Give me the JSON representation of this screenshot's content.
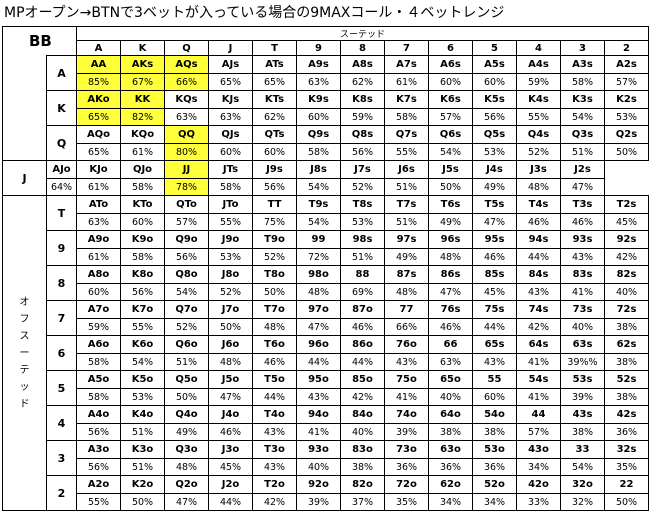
{
  "title": "MPオープン→BTNで3ベットが入っている場合の9MAXコール・４ベットレンジ",
  "corner_label": "BB",
  "suited_label": "スーテッド",
  "offsuit_label": [
    "オ",
    "フ",
    "ス",
    "ー",
    "テ",
    "ッ",
    "ド"
  ],
  "columns": [
    "A",
    "K",
    "Q",
    "J",
    "T",
    "9",
    "8",
    "7",
    "6",
    "5",
    "4",
    "3",
    "2"
  ],
  "rows": [
    {
      "rank": "A",
      "hands": [
        "AA",
        "AKs",
        "AQs",
        "AJs",
        "ATs",
        "A9s",
        "A8s",
        "A7s",
        "A6s",
        "A5s",
        "A4s",
        "A3s",
        "A2s"
      ],
      "pcts": [
        "85%",
        "67%",
        "66%",
        "65%",
        "65%",
        "63%",
        "62%",
        "61%",
        "60%",
        "60%",
        "59%",
        "58%",
        "57%"
      ],
      "highlight": [
        true,
        true,
        true,
        false,
        false,
        false,
        false,
        false,
        false,
        false,
        false,
        false,
        false
      ]
    },
    {
      "rank": "K",
      "hands": [
        "AKo",
        "KK",
        "KQs",
        "KJs",
        "KTs",
        "K9s",
        "K8s",
        "K7s",
        "K6s",
        "K5s",
        "K4s",
        "K3s",
        "K2s"
      ],
      "pcts": [
        "65%",
        "82%",
        "63%",
        "63%",
        "62%",
        "60%",
        "59%",
        "58%",
        "57%",
        "56%",
        "55%",
        "54%",
        "53%"
      ],
      "highlight": [
        true,
        true,
        false,
        false,
        false,
        false,
        false,
        false,
        false,
        false,
        false,
        false,
        false
      ]
    },
    {
      "rank": "Q",
      "hands": [
        "AQo",
        "KQo",
        "QQ",
        "QJs",
        "QTs",
        "Q9s",
        "Q8s",
        "Q7s",
        "Q6s",
        "Q5s",
        "Q4s",
        "Q3s",
        "Q2s"
      ],
      "pcts": [
        "65%",
        "61%",
        "80%",
        "60%",
        "60%",
        "58%",
        "56%",
        "55%",
        "54%",
        "53%",
        "52%",
        "51%",
        "50%"
      ],
      "highlight": [
        false,
        false,
        true,
        false,
        false,
        false,
        false,
        false,
        false,
        false,
        false,
        false,
        false
      ]
    },
    {
      "rank": "J",
      "hands": [
        "AJo",
        "KJo",
        "QJo",
        "JJ",
        "JTs",
        "J9s",
        "J8s",
        "J7s",
        "J6s",
        "J5s",
        "J4s",
        "J3s",
        "J2s"
      ],
      "pcts": [
        "64%",
        "61%",
        "58%",
        "78%",
        "58%",
        "56%",
        "54%",
        "52%",
        "51%",
        "50%",
        "49%",
        "48%",
        "47%"
      ],
      "highlight": [
        false,
        false,
        false,
        true,
        false,
        false,
        false,
        false,
        false,
        false,
        false,
        false,
        false
      ]
    },
    {
      "rank": "T",
      "hands": [
        "ATo",
        "KTo",
        "QTo",
        "JTo",
        "TT",
        "T9s",
        "T8s",
        "T7s",
        "T6s",
        "T5s",
        "T4s",
        "T3s",
        "T2s"
      ],
      "pcts": [
        "63%",
        "60%",
        "57%",
        "55%",
        "75%",
        "54%",
        "53%",
        "51%",
        "49%",
        "47%",
        "46%",
        "46%",
        "45%"
      ],
      "highlight": [
        false,
        false,
        false,
        false,
        false,
        false,
        false,
        false,
        false,
        false,
        false,
        false,
        false
      ]
    },
    {
      "rank": "9",
      "hands": [
        "A9o",
        "K9o",
        "Q9o",
        "J9o",
        "T9o",
        "99",
        "98s",
        "97s",
        "96s",
        "95s",
        "94s",
        "93s",
        "92s"
      ],
      "pcts": [
        "61%",
        "58%",
        "56%",
        "53%",
        "52%",
        "72%",
        "51%",
        "49%",
        "48%",
        "46%",
        "44%",
        "43%",
        "42%"
      ],
      "highlight": [
        false,
        false,
        false,
        false,
        false,
        false,
        false,
        false,
        false,
        false,
        false,
        false,
        false
      ]
    },
    {
      "rank": "8",
      "hands": [
        "A8o",
        "K8o",
        "Q8o",
        "J8o",
        "T8o",
        "98o",
        "88",
        "87s",
        "86s",
        "85s",
        "84s",
        "83s",
        "82s"
      ],
      "pcts": [
        "60%",
        "56%",
        "54%",
        "52%",
        "50%",
        "48%",
        "69%",
        "48%",
        "47%",
        "45%",
        "43%",
        "41%",
        "40%"
      ],
      "highlight": [
        false,
        false,
        false,
        false,
        false,
        false,
        false,
        false,
        false,
        false,
        false,
        false,
        false
      ]
    },
    {
      "rank": "7",
      "hands": [
        "A7o",
        "K7o",
        "Q7o",
        "J7o",
        "T7o",
        "97o",
        "87o",
        "77",
        "76s",
        "75s",
        "74s",
        "73s",
        "72s"
      ],
      "pcts": [
        "59%",
        "55%",
        "52%",
        "50%",
        "48%",
        "47%",
        "46%",
        "66%",
        "46%",
        "44%",
        "42%",
        "40%",
        "38%"
      ],
      "highlight": [
        false,
        false,
        false,
        false,
        false,
        false,
        false,
        false,
        false,
        false,
        false,
        false,
        false
      ]
    },
    {
      "rank": "6",
      "hands": [
        "A6o",
        "K6o",
        "Q6o",
        "J6o",
        "T6o",
        "96o",
        "86o",
        "76o",
        "66",
        "65s",
        "64s",
        "63s",
        "62s"
      ],
      "pcts": [
        "58%",
        "54%",
        "51%",
        "48%",
        "46%",
        "44%",
        "44%",
        "43%",
        "63%",
        "43%",
        "41%",
        "39%%",
        "38%"
      ],
      "highlight": [
        false,
        false,
        false,
        false,
        false,
        false,
        false,
        false,
        false,
        false,
        false,
        false,
        false
      ]
    },
    {
      "rank": "5",
      "hands": [
        "A5o",
        "K5o",
        "Q5o",
        "J5o",
        "T5o",
        "95o",
        "85o",
        "75o",
        "65o",
        "55",
        "54s",
        "53s",
        "52s"
      ],
      "pcts": [
        "58%",
        "53%",
        "50%",
        "47%",
        "44%",
        "43%",
        "42%",
        "41%",
        "40%",
        "60%",
        "41%",
        "39%",
        "38%"
      ],
      "highlight": [
        false,
        false,
        false,
        false,
        false,
        false,
        false,
        false,
        false,
        false,
        false,
        false,
        false
      ]
    },
    {
      "rank": "4",
      "hands": [
        "A4o",
        "K4o",
        "Q4o",
        "J4o",
        "T4o",
        "94o",
        "84o",
        "74o",
        "64o",
        "54o",
        "44",
        "43s",
        "42s"
      ],
      "pcts": [
        "56%",
        "51%",
        "49%",
        "46%",
        "43%",
        "41%",
        "40%",
        "39%",
        "38%",
        "38%",
        "57%",
        "38%",
        "36%"
      ],
      "highlight": [
        false,
        false,
        false,
        false,
        false,
        false,
        false,
        false,
        false,
        false,
        false,
        false,
        false
      ]
    },
    {
      "rank": "3",
      "hands": [
        "A3o",
        "K3o",
        "Q3o",
        "J3o",
        "T3o",
        "93o",
        "83o",
        "73o",
        "63o",
        "53o",
        "43o",
        "33",
        "32s"
      ],
      "pcts": [
        "56%",
        "51%",
        "48%",
        "45%",
        "43%",
        "40%",
        "38%",
        "36%",
        "36%",
        "36%",
        "34%",
        "54%",
        "35%"
      ],
      "highlight": [
        false,
        false,
        false,
        false,
        false,
        false,
        false,
        false,
        false,
        false,
        false,
        false,
        false
      ]
    },
    {
      "rank": "2",
      "hands": [
        "A2o",
        "K2o",
        "Q2o",
        "J2o",
        "T2o",
        "92o",
        "82o",
        "72o",
        "62o",
        "52o",
        "42o",
        "32o",
        "22"
      ],
      "pcts": [
        "55%",
        "50%",
        "47%",
        "44%",
        "42%",
        "39%",
        "37%",
        "35%",
        "34%",
        "34%",
        "33%",
        "32%",
        "50%"
      ],
      "highlight": [
        false,
        false,
        false,
        false,
        false,
        false,
        false,
        false,
        false,
        false,
        false,
        false,
        false
      ]
    }
  ],
  "colors": {
    "highlight": "#ffff3a",
    "border": "#000000"
  }
}
